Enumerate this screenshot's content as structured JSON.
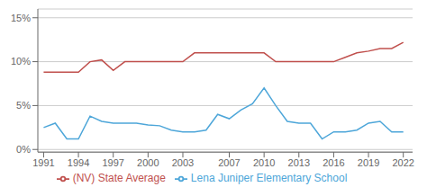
{
  "chart_data": {
    "type": "line",
    "x": [
      1991,
      1992,
      1993,
      1994,
      1995,
      1996,
      1997,
      1998,
      1999,
      2000,
      2001,
      2002,
      2003,
      2004,
      2005,
      2006,
      2007,
      2008,
      2009,
      2010,
      2011,
      2012,
      2013,
      2014,
      2015,
      2016,
      2017,
      2018,
      2019,
      2020,
      2021,
      2022
    ],
    "series": [
      {
        "name": "Lena Juniper Elementary School",
        "color": "#4da6d9",
        "values": [
          2.5,
          3.0,
          1.2,
          1.2,
          3.8,
          3.2,
          3.0,
          3.0,
          3.0,
          2.8,
          2.7,
          2.2,
          2.0,
          2.0,
          2.2,
          4.0,
          3.5,
          4.5,
          5.2,
          7.0,
          5.0,
          3.2,
          3.0,
          3.0,
          1.2,
          2.0,
          2.0,
          2.2,
          3.0,
          3.2,
          2.0,
          2.0
        ]
      },
      {
        "name": "(NV) State Average",
        "color": "#c0504d",
        "values": [
          8.8,
          8.8,
          8.8,
          8.8,
          10.0,
          10.2,
          9.0,
          10.0,
          10.0,
          10.0,
          10.0,
          10.0,
          10.0,
          11.0,
          11.0,
          11.0,
          11.0,
          11.0,
          11.0,
          11.0,
          10.0,
          10.0,
          10.0,
          10.0,
          10.0,
          10.0,
          10.5,
          11.0,
          11.2,
          11.5,
          11.5,
          12.2
        ]
      }
    ],
    "xlim": [
      1990.5,
      2022.8
    ],
    "xticks": [
      1991,
      1994,
      1997,
      2000,
      2003,
      2007,
      2010,
      2013,
      2016,
      2019,
      2022
    ],
    "ylim": [
      -0.3,
      16
    ],
    "yticks": [
      {
        "value": 0,
        "label": "0%"
      },
      {
        "value": 5,
        "label": "5%"
      },
      {
        "value": 10,
        "label": "10%"
      },
      {
        "value": 15,
        "label": "15%"
      }
    ],
    "grid": "y",
    "legend": "bottom"
  }
}
